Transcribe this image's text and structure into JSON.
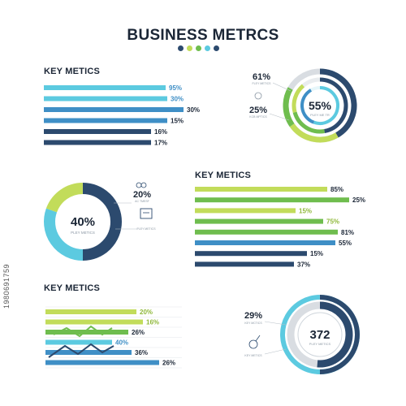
{
  "title": "BUSINESS METRCS",
  "colors": {
    "navy": "#2c4a6e",
    "blue": "#3f8fc6",
    "cyan": "#5ccae0",
    "lime": "#c2dc5a",
    "green": "#6fbd4e",
    "lightgrey": "#d9dde2"
  },
  "title_dots": [
    "#2c4a6e",
    "#c2dc5a",
    "#6fbd4e",
    "#5ccae0",
    "#2c4a6e"
  ],
  "watermark": "1980691759",
  "chart_data": [
    {
      "type": "bar",
      "title": "KEY METICS",
      "orientation": "horizontal",
      "series": [
        {
          "values": [
            95,
            30,
            30,
            15,
            16,
            17
          ]
        }
      ],
      "labels": [
        "95%",
        "30%",
        "30%",
        "15%",
        "16%",
        "17%"
      ],
      "colors": [
        "#5ccae0",
        "#5ccae0",
        "#3f8fc6",
        "#3f8fc6",
        "#2c4a6e",
        "#2c4a6e"
      ]
    },
    {
      "type": "pie",
      "center_value": "55%",
      "center_caption": "PLEY ME TR",
      "callouts": [
        {
          "value": "61%",
          "caption": "FLEY METICS"
        },
        {
          "value": "25%",
          "caption": "KCB MPTICS"
        }
      ]
    },
    {
      "type": "pie",
      "center_value": "40%",
      "center_caption": "PLEY METICS",
      "callouts": [
        {
          "value": "20%",
          "caption": "AC TMESF"
        },
        {
          "value": "",
          "caption": "PLEY METICS"
        }
      ]
    },
    {
      "type": "bar",
      "title": "KEY METICS",
      "orientation": "horizontal",
      "series": [
        {
          "values": [
            85,
            25,
            15,
            75,
            81,
            55,
            15,
            37
          ]
        }
      ],
      "labels": [
        "85%",
        "25%",
        "15%",
        "75%",
        "81%",
        "55%",
        "15%",
        "37%"
      ],
      "colors": [
        "#c2dc5a",
        "#6fbd4e",
        "#c2dc5a",
        "#6fbd4e",
        "#6fbd4e",
        "#3f8fc6",
        "#2c4a6e",
        "#2c4a6e"
      ]
    },
    {
      "type": "bar",
      "title": "KEY METICS",
      "orientation": "horizontal",
      "series": [
        {
          "values": [
            20,
            16,
            26,
            40,
            36,
            26
          ]
        }
      ],
      "labels": [
        "20%",
        "16%",
        "26%",
        "40%",
        "36%",
        "26%"
      ],
      "colors": [
        "#c2dc5a",
        "#c2dc5a",
        "#6fbd4e",
        "#5ccae0",
        "#3f8fc6",
        "#3f8fc6"
      ]
    },
    {
      "type": "pie",
      "center_value": "372",
      "center_caption": "PLEY METICS",
      "callouts": [
        {
          "value": "29%",
          "caption": "KEY MCTICS"
        },
        {
          "value": "",
          "caption": "KEY METICS"
        }
      ]
    }
  ]
}
